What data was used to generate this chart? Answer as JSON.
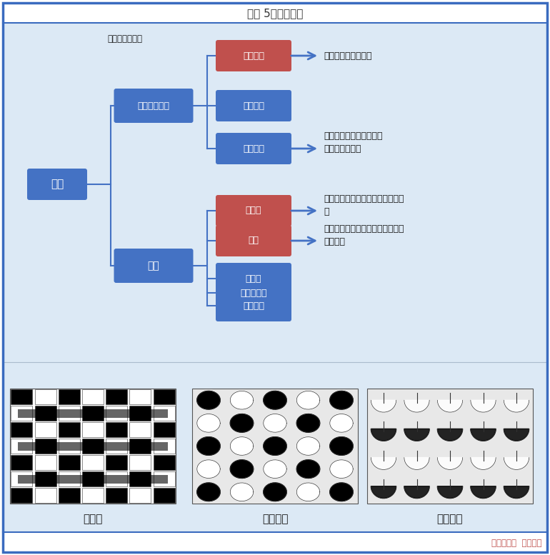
{
  "title": "图表 5：终端织造",
  "bg_outer": "#ffffff",
  "bg_diagram": "#dce9f5",
  "bg_bottom": "#dce9f5",
  "box_blue": "#4472c4",
  "box_red": "#c0504d",
  "text_white": "#ffffff",
  "text_dark": "#1a1a1a",
  "arrow_color": "#4472c4",
  "border_color": "#3a6bbf",
  "root_label": "织造",
  "branch1_label": "梭织（无梭）",
  "branch2_label": "针织",
  "branch1_note": "有梭被无梭替代",
  "branch1_children": [
    "喷水织机",
    "剑杆织机",
    "喷气织机"
  ],
  "branch1_child_colors": [
    "red",
    "blue",
    "blue"
  ],
  "branch2_children": [
    "经编机",
    "圆机",
    "花边机",
    "无缝内衣机",
    "织袜机等"
  ],
  "branch2_child_colors": [
    "red",
    "red",
    "blue",
    "blue",
    "blue"
  ],
  "ann1_text": "涤纶梭织的主流机型",
  "ann2_text": "辅助机型，主打棉类、粘\n胶（天丝）织物",
  "ann3_text": "涤纶针织的主流机型，主打化纤织\n物",
  "ann4_text": "涤纶针织的主流机型，主打化纤和\n棉类织物",
  "footer_text": "数据来源：  公开资料",
  "image_labels": [
    "机织物",
    "经编织物",
    "纬编织物"
  ]
}
